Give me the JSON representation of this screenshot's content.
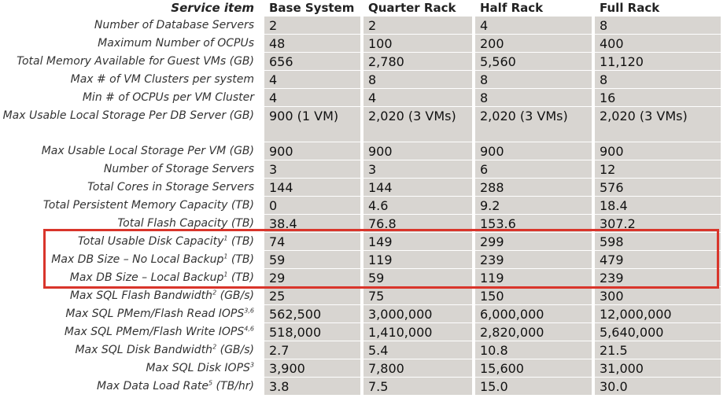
{
  "header": [
    "Service item",
    "Base System",
    "Quarter Rack",
    "Half Rack",
    "Full Rack"
  ],
  "rows": [
    {
      "label": "Number of Database Servers",
      "cells": [
        "2",
        "2",
        "4",
        "8"
      ]
    },
    {
      "label": "Maximum Number of OCPUs",
      "cells": [
        "48",
        "100",
        "200",
        "400"
      ]
    },
    {
      "label": "Total Memory Available for Guest VMs (GB)",
      "cells": [
        "656",
        "2,780",
        "5,560",
        "11,120"
      ]
    },
    {
      "label": "Max # of VM Clusters per system",
      "cells": [
        "4",
        "8",
        "8",
        "8"
      ]
    },
    {
      "label": "Min # of OCPUs per VM Cluster",
      "cells": [
        "4",
        "4",
        "8",
        "16"
      ]
    },
    {
      "label": "Max Usable Local Storage Per DB Server (GB)",
      "cells": [
        "900 (1 VM)",
        "2,020 (3 VMs)",
        "2,020 (3 VMs)",
        "2,020 (3 VMs)"
      ]
    },
    {
      "label": "Max Usable Local Storage Per VM (GB)",
      "cells": [
        "900",
        "900",
        "900",
        "900"
      ]
    },
    {
      "label": "Number of Storage Servers",
      "cells": [
        "3",
        "3",
        "6",
        "12"
      ]
    },
    {
      "label": "Total Cores in Storage Servers",
      "cells": [
        "144",
        "144",
        "288",
        "576"
      ]
    },
    {
      "label": "Total Persistent Memory Capacity (TB)",
      "cells": [
        "0",
        "4.6",
        "9.2",
        "18.4"
      ]
    },
    {
      "label": "Total Flash Capacity (TB)",
      "cells": [
        "38.4",
        "76.8",
        "153.6",
        "307.2"
      ]
    },
    {
      "label": {
        "text": "Total Usable Disk Capacity",
        "sup": "1",
        "after": " (TB)"
      },
      "cells": [
        "74",
        "149",
        "299",
        "598"
      ]
    },
    {
      "label": {
        "text": "Max DB Size – No Local Backup",
        "sup": "1",
        "after": " (TB)"
      },
      "cells": [
        "59",
        "119",
        "239",
        "479"
      ]
    },
    {
      "label": {
        "text": "Max DB Size – Local Backup",
        "sup": "1",
        "after": " (TB)"
      },
      "cells": [
        "29",
        "59",
        "119",
        "239"
      ]
    },
    {
      "label": {
        "text": "Max SQL Flash Bandwidth",
        "sup": "2",
        "after": " (GB/s)"
      },
      "cells": [
        "25",
        "75",
        "150",
        "300"
      ]
    },
    {
      "label": {
        "text": "Max SQL PMem/Flash Read IOPS",
        "sup": "3,6"
      },
      "cells": [
        "562,500",
        "3,000,000",
        "6,000,000",
        "12,000,000"
      ]
    },
    {
      "label": {
        "text": "Max SQL PMem/Flash Write IOPS",
        "sup": "4,6"
      },
      "cells": [
        "518,000",
        "1,410,000",
        "2,820,000",
        "5,640,000"
      ]
    },
    {
      "label": {
        "text": "Max SQL Disk Bandwidth",
        "sup": "2",
        "after": " (GB/s)"
      },
      "cells": [
        "2.7",
        "5.4",
        "10.8",
        "21.5"
      ]
    },
    {
      "label": {
        "text": "Max SQL Disk IOPS",
        "sup": "3"
      },
      "cells": [
        "3,900",
        "7,800",
        "15,600",
        "31,000"
      ]
    },
    {
      "label": {
        "text": "Max Data Load Rate",
        "sup": "5",
        "after": " (TB/hr)"
      },
      "cells": [
        "3.8",
        "7.5",
        "15.0",
        "30.0"
      ]
    }
  ]
}
